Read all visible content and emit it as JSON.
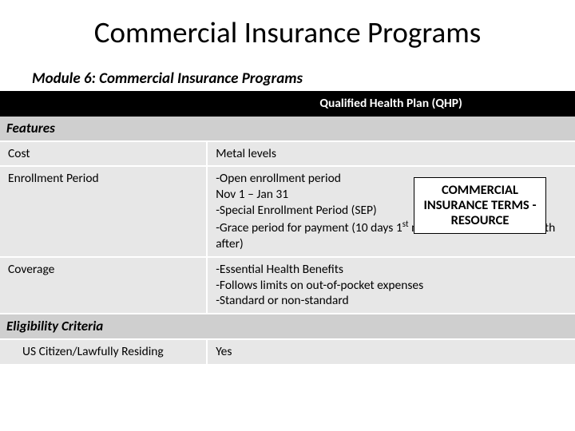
{
  "title": "Commercial Insurance Programs",
  "subtitle": "Module 6: Commercial Insurance Programs",
  "table": {
    "header_col2": "Qualified Health Plan (QHP)",
    "section_features": "Features",
    "cost_label": "Cost",
    "cost_value": "Metal levels",
    "enroll_label": "Enrollment Period",
    "enroll_line1": "-Open enrollment period",
    "enroll_line2": "Nov 1 – Jan 31",
    "enroll_line3": "-Special Enrollment Period (SEP)",
    "enroll_line4_pre": "-Grace period for payment (10 days 1",
    "enroll_line4_sup": "st",
    "enroll_line4_post": " month, 30 days every month after)",
    "coverage_label": "Coverage",
    "coverage_line1": "-Essential Health Benefits",
    "coverage_line2": "-Follows limits on out-of-pocket expenses",
    "coverage_line3": "-Standard or non-standard",
    "section_eligibility": "Eligibility Criteria",
    "us_label": "US Citizen/Lawfully Residing",
    "us_value": "Yes"
  },
  "callout": {
    "line1": "COMMERCIAL INSURANCE TERMS - RESOURCE"
  },
  "colors": {
    "header_bg": "#000000",
    "header_fg": "#ffffff",
    "section_bg": "#cfcfcf",
    "row_bg": "#e7e7e7",
    "border": "#ffffff"
  }
}
